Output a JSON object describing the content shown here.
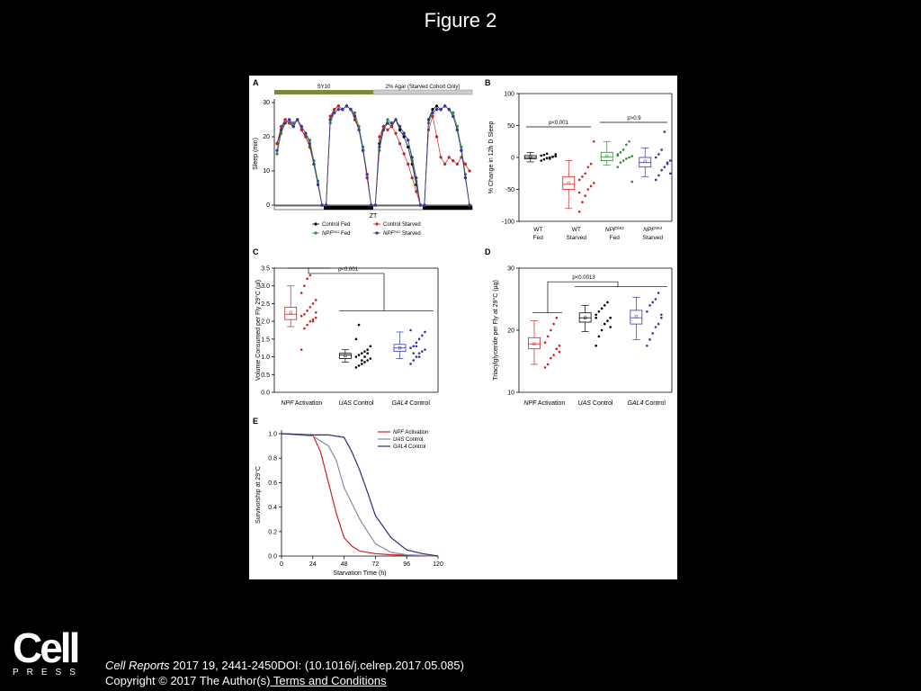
{
  "page": {
    "title": "Figure 2"
  },
  "footer": {
    "logo_text": "Cell",
    "logo_sub": "PRESS",
    "journal": "Cell Reports",
    "citation": " 2017 19, 2441-2450DOI: (10.1016/j.celrep.2017.05.085)",
    "copyright": "Copyright © 2017 The Author(s)",
    "terms_link": " Terms and Conditions"
  },
  "colors": {
    "black": "#000000",
    "red": "#cc2222",
    "green": "#2e8b2e",
    "blue": "#3535a8",
    "grey": "#777777",
    "olive": "#7a8a3a",
    "lightgrey": "#cccccc"
  },
  "chart_data": [
    {
      "panel": "A",
      "type": "line",
      "bars": [
        {
          "label": "SY10"
        },
        {
          "label": "2% Agar (Starved Cohort Only)"
        }
      ],
      "ylabel": "Sleep (min)",
      "xlabel": "ZT",
      "yticks": [
        0,
        10,
        20,
        30
      ],
      "ylim": [
        0,
        30
      ],
      "legend": [
        {
          "label": "Control Fed",
          "color": "#000000"
        },
        {
          "label": "Control Starved",
          "color": "#cc2222"
        },
        {
          "label": "NPF",
          "sup": "SK2",
          "suffix": " Fed",
          "color": "#2e8b2e"
        },
        {
          "label": "NPF",
          "sup": "SK2",
          "suffix": " Starved",
          "color": "#3535a8"
        }
      ],
      "series": [
        {
          "name": "Control Fed",
          "color": "#000000",
          "values": [
            18,
            22,
            25,
            24,
            23,
            25,
            22,
            20,
            17,
            12,
            6,
            0,
            0,
            25,
            28,
            29,
            28,
            29,
            28,
            26,
            22,
            16,
            8,
            0,
            0,
            18,
            23,
            24,
            23,
            25,
            22,
            20,
            17,
            12,
            6,
            0,
            0,
            25,
            28,
            29,
            28,
            29,
            28,
            26,
            22,
            16,
            8,
            0
          ]
        },
        {
          "name": "Control Starved",
          "color": "#cc2222",
          "values": [
            18,
            23,
            25,
            24,
            24,
            25,
            22,
            20,
            17,
            12,
            6,
            0,
            0,
            26,
            28,
            29,
            28,
            29,
            28,
            25,
            22,
            16,
            8,
            0,
            0,
            20,
            23,
            22,
            23,
            21,
            18,
            15,
            12,
            8,
            4,
            0,
            0,
            22,
            26,
            20,
            14,
            12,
            14,
            13,
            12,
            14,
            12,
            10
          ]
        },
        {
          "name": "NPF SK2 Fed",
          "color": "#2e8b2e",
          "values": [
            15,
            21,
            24,
            25,
            24,
            25,
            23,
            21,
            19,
            13,
            7,
            0,
            0,
            24,
            27,
            28,
            28,
            29,
            28,
            27,
            23,
            17,
            9,
            0,
            0,
            16,
            22,
            25,
            24,
            25,
            23,
            21,
            19,
            13,
            7,
            0,
            0,
            24,
            27,
            28,
            28,
            29,
            28,
            27,
            23,
            17,
            9,
            0
          ]
        },
        {
          "name": "NPF SK2 Starved",
          "color": "#3535a8",
          "values": [
            16,
            22,
            24,
            25,
            23,
            25,
            23,
            21,
            18,
            12,
            6,
            0,
            0,
            25,
            27,
            28,
            28,
            29,
            28,
            26,
            22,
            16,
            9,
            0,
            0,
            17,
            22,
            24,
            24,
            25,
            23,
            21,
            19,
            14,
            8,
            0,
            0,
            25,
            27,
            28,
            28,
            29,
            28,
            26,
            22,
            16,
            8,
            0
          ]
        }
      ]
    },
    {
      "panel": "B",
      "type": "box",
      "ylabel": "% Change in 12h D Sleep",
      "yticks": [
        -100,
        -50,
        0,
        50,
        100
      ],
      "ylim": [
        -100,
        100
      ],
      "annotations": [
        {
          "text": "p<0.001"
        },
        {
          "text": "p>0.9"
        }
      ],
      "categories": [
        {
          "line1": "WT",
          "line2": "Fed",
          "color": "#000000",
          "q1": -2,
          "median": 0,
          "q3": 3,
          "mean": 1,
          "lo": -7,
          "hi": 8,
          "points": [
            -5,
            -3,
            -1,
            0,
            1,
            2,
            3,
            4,
            6,
            -2,
            1,
            5
          ]
        },
        {
          "line1": "WT",
          "line2": "Starved",
          "color": "#cc2222",
          "q1": -50,
          "median": -42,
          "q3": -30,
          "mean": -40,
          "lo": -80,
          "hi": -5,
          "points": [
            -85,
            -70,
            -60,
            -50,
            -45,
            -40,
            -35,
            -30,
            -25,
            -15,
            -10,
            25,
            -55
          ]
        },
        {
          "line1": "NPF",
          "sup": "SK2",
          "line2": "Fed",
          "color": "#2e8b2e",
          "q1": -5,
          "median": 1,
          "q3": 8,
          "mean": 2,
          "lo": -12,
          "hi": 25,
          "points": [
            -15,
            -8,
            -5,
            -2,
            0,
            2,
            5,
            8,
            12,
            20,
            25,
            -38,
            3
          ]
        },
        {
          "line1": "NPF",
          "sup": "SK2",
          "line2": "Starved",
          "color": "#3535a8",
          "q1": -15,
          "median": -8,
          "q3": 0,
          "mean": -6,
          "lo": -30,
          "hi": 15,
          "points": [
            -35,
            -28,
            -20,
            -15,
            -10,
            -5,
            0,
            5,
            12,
            40,
            -8,
            -25
          ]
        }
      ]
    },
    {
      "panel": "C",
      "type": "box",
      "ylabel": "Volume Consumed per Fly 29°C (µl)",
      "yticks": [
        0.0,
        0.5,
        1.0,
        1.5,
        2.0,
        2.5,
        3.0,
        3.5
      ],
      "ylim": [
        0,
        3.5
      ],
      "annotations": [
        {
          "text": "p<0.001"
        }
      ],
      "categories": [
        {
          "italic": "NPF",
          "rest": " Activation",
          "color": "#cc2222",
          "q1": 2.05,
          "median": 2.2,
          "q3": 2.4,
          "mean": 2.25,
          "lo": 1.85,
          "hi": 3.0,
          "points": [
            1.2,
            1.8,
            1.9,
            2.0,
            2.05,
            2.1,
            2.15,
            2.2,
            2.3,
            2.4,
            2.5,
            2.6,
            2.8,
            3.0,
            3.2,
            3.3,
            2.0,
            2.25
          ]
        },
        {
          "italic": "UAS",
          "rest": " Control",
          "color": "#000000",
          "q1": 0.95,
          "median": 1.05,
          "q3": 1.1,
          "mean": 1.03,
          "lo": 0.85,
          "hi": 1.2,
          "points": [
            0.7,
            0.75,
            0.8,
            0.85,
            0.9,
            0.95,
            1.0,
            1.05,
            1.1,
            1.15,
            1.2,
            1.3,
            1.5,
            1.9,
            0.9,
            1.0,
            1.1
          ]
        },
        {
          "italic": "GAL4",
          "rest": " Control",
          "color": "#3535a8",
          "q1": 1.15,
          "median": 1.25,
          "q3": 1.35,
          "mean": 1.25,
          "lo": 0.95,
          "hi": 1.7,
          "points": [
            0.8,
            0.9,
            1.0,
            1.1,
            1.15,
            1.2,
            1.25,
            1.3,
            1.4,
            1.5,
            1.6,
            1.7,
            1.75,
            1.1,
            1.3,
            1.0
          ]
        }
      ]
    },
    {
      "panel": "D",
      "type": "box",
      "ylabel": "Triacylglyceride per Fly at 29°C (µg)",
      "yticks": [
        10,
        20,
        30
      ],
      "ylim": [
        10,
        30
      ],
      "annotations": [
        {
          "text": "p<0.0013"
        }
      ],
      "categories": [
        {
          "italic": "NPF",
          "rest": " Activation",
          "color": "#cc2222",
          "q1": 17,
          "median": 17.8,
          "q3": 18.8,
          "mean": 17.8,
          "lo": 14.5,
          "hi": 21.5,
          "points": [
            14,
            14.5,
            15.5,
            16,
            17,
            17.5,
            18,
            19,
            20,
            21,
            22,
            16.5
          ]
        },
        {
          "italic": "UAS",
          "rest": " Control",
          "color": "#000000",
          "q1": 21.3,
          "median": 22,
          "q3": 22.8,
          "mean": 22,
          "lo": 19.8,
          "hi": 24,
          "points": [
            17.5,
            19,
            20,
            21,
            21.5,
            22,
            22.5,
            23,
            23.5,
            24,
            24.5,
            20.5,
            22
          ]
        },
        {
          "italic": "GAL4",
          "rest": " Control",
          "color": "#3535a8",
          "q1": 21,
          "median": 22,
          "q3": 23.2,
          "mean": 22.2,
          "lo": 18.5,
          "hi": 25.3,
          "points": [
            17.5,
            18.5,
            19.5,
            20.5,
            21,
            22,
            23,
            24,
            24.5,
            25,
            26,
            22.5
          ]
        }
      ]
    },
    {
      "panel": "E",
      "type": "line",
      "xlabel": "Starvation Time (h)",
      "ylabel": "Survivorship at 29°C",
      "xticks": [
        0,
        24,
        48,
        72,
        96,
        120
      ],
      "yticks": [
        0.0,
        0.2,
        0.4,
        0.6,
        0.8,
        1.0
      ],
      "xlim": [
        0,
        120
      ],
      "ylim": [
        0,
        1.0
      ],
      "series": [
        {
          "italic": "NPF",
          "rest": " Activation",
          "color": "#cc2222",
          "x": [
            0,
            24,
            30,
            36,
            42,
            48,
            54,
            60,
            72,
            84,
            120
          ],
          "y": [
            1.0,
            0.99,
            0.85,
            0.6,
            0.35,
            0.15,
            0.08,
            0.04,
            0.02,
            0.01,
            0.0
          ]
        },
        {
          "italic": "UAS",
          "rest": " Control",
          "color": "#8a8aa8",
          "x": [
            0,
            24,
            36,
            42,
            48,
            54,
            60,
            66,
            72,
            84,
            96,
            120
          ],
          "y": [
            1.0,
            0.98,
            0.9,
            0.78,
            0.56,
            0.43,
            0.3,
            0.2,
            0.1,
            0.03,
            0.01,
            0.0
          ]
        },
        {
          "italic": "GAL4",
          "rest": " Control",
          "color": "#2a2a78",
          "x": [
            0,
            24,
            36,
            48,
            54,
            60,
            66,
            72,
            84,
            96,
            108,
            120
          ],
          "y": [
            1.0,
            0.99,
            0.99,
            0.97,
            0.85,
            0.7,
            0.52,
            0.33,
            0.15,
            0.05,
            0.02,
            0.0
          ]
        }
      ]
    }
  ]
}
